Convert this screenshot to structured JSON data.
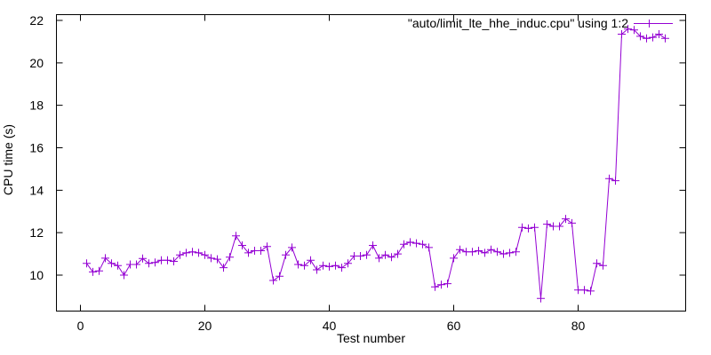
{
  "figure": {
    "background": "#ffffff",
    "border_color": "#000000",
    "text_color": "#000000"
  },
  "chart_data": {
    "type": "line",
    "title": "",
    "xlabel": "Test number",
    "ylabel": "CPU time (s)",
    "legend": "\"auto/limit_lte_hhe_induc.cpu\" using 1:2",
    "legend_position": "top-right-inside",
    "line_color": "#9400d3",
    "marker": "plus",
    "marker_size": 9,
    "grid": false,
    "xlim": [
      -4,
      97
    ],
    "ylim": [
      8.3,
      22.3
    ],
    "xticks": [
      0,
      20,
      40,
      60,
      80
    ],
    "yticks": [
      10,
      12,
      14,
      16,
      18,
      20,
      22
    ],
    "x_start": 1,
    "x_step": 1,
    "values": [
      10.55,
      10.15,
      10.2,
      10.8,
      10.55,
      10.45,
      10.0,
      10.5,
      10.5,
      10.78,
      10.55,
      10.6,
      10.7,
      10.7,
      10.65,
      10.95,
      11.05,
      11.1,
      11.05,
      10.95,
      10.8,
      10.75,
      10.35,
      10.85,
      11.85,
      11.4,
      11.05,
      11.15,
      11.15,
      11.35,
      9.75,
      9.95,
      10.95,
      11.3,
      10.5,
      10.45,
      10.7,
      10.25,
      10.45,
      10.4,
      10.45,
      10.35,
      10.55,
      10.9,
      10.9,
      10.95,
      11.4,
      10.8,
      10.95,
      10.85,
      11.0,
      11.45,
      11.55,
      11.5,
      11.45,
      11.3,
      9.45,
      9.55,
      9.6,
      10.8,
      11.2,
      11.1,
      11.1,
      11.15,
      11.05,
      11.2,
      11.1,
      11.0,
      11.05,
      11.1,
      12.25,
      12.2,
      12.25,
      8.9,
      12.4,
      12.3,
      12.3,
      12.65,
      12.45,
      9.3,
      9.3,
      9.25,
      10.55,
      10.45,
      14.55,
      14.45,
      21.35,
      21.6,
      21.55,
      21.25,
      21.15,
      21.2,
      21.35,
      21.15
    ]
  }
}
